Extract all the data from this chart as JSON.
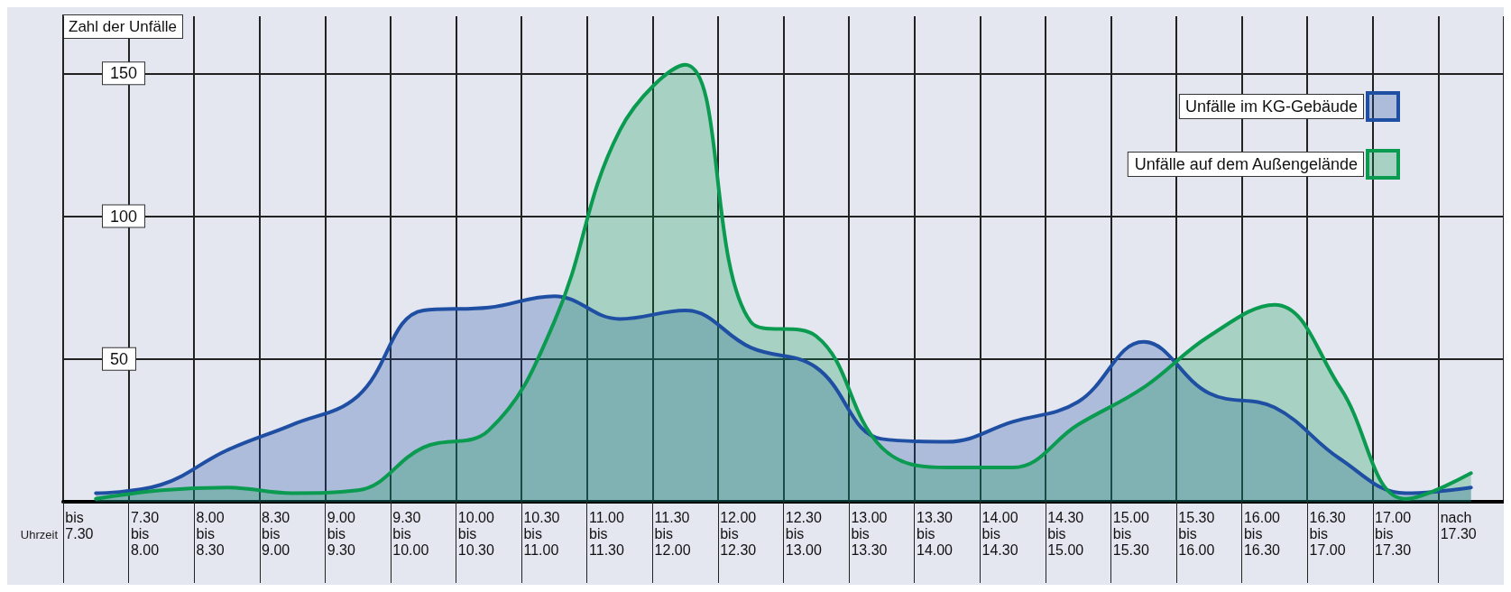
{
  "chart_data": {
    "type": "area",
    "ylabel": "Zahl der Unfälle",
    "xlabel": "Uhrzeit",
    "categories": [
      "bis\n7.30",
      "7.30\nbis\n8.00",
      "8.00\nbis\n8.30",
      "8.30\nbis\n9.00",
      "9.00\nbis\n9.30",
      "9.30\nbis\n10.00",
      "10.00\nbis\n10.30",
      "10.30\nbis\n11.00",
      "11.00\nbis\n11.30",
      "11.30\nbis\n12.00",
      "12.00\nbis\n12.30",
      "12.30\nbis\n13.00",
      "13.00\nbis\n13.30",
      "13.30\nbis\n14.00",
      "14.00\nbis\n14.30",
      "14.30\nbis\n15.00",
      "15.00\nbis\n15.30",
      "15.30\nbis\n16.00",
      "16.00\nbis\n16.30",
      "16.30\nbis\n17.00",
      "17.00\nbis\n17.30",
      "nach\n17.30"
    ],
    "series": [
      {
        "name": "Unfälle im KG-Gebäude",
        "color": "#1f4fa3",
        "values": [
          3,
          6,
          18,
          27,
          37,
          67,
          68,
          72,
          64,
          67,
          54,
          47,
          22,
          21,
          28,
          35,
          56,
          38,
          33,
          15,
          3,
          5
        ]
      },
      {
        "name": "Unfälle auf dem Außengelände",
        "color": "#0a9a50",
        "values": [
          1,
          4,
          5,
          3,
          4,
          19,
          25,
          63,
          130,
          153,
          63,
          58,
          19,
          12,
          12,
          27,
          40,
          58,
          69,
          40,
          1,
          10
        ]
      }
    ],
    "ylim": [
      0,
      170
    ],
    "yticks": [
      50,
      100,
      150
    ],
    "grid": true,
    "legend": "top right",
    "marker": "none",
    "line_style": "solid"
  }
}
